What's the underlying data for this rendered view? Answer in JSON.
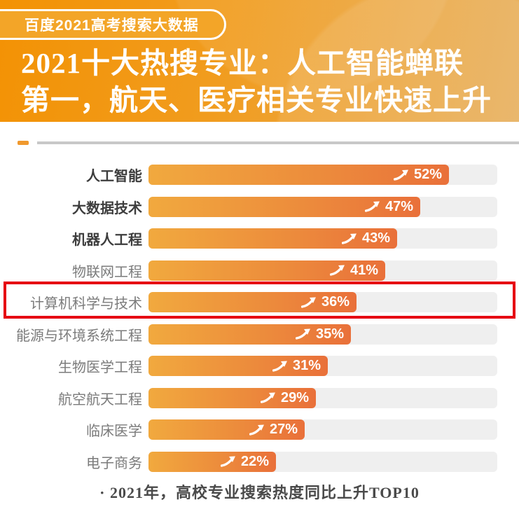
{
  "badge": {
    "label": "百度2021高考搜索大数据"
  },
  "title": {
    "line1": "2021十大热搜专业：人工智能蝉联",
    "line2": "第一，航天、医疗相关专业快速上升"
  },
  "chart_data": {
    "type": "bar",
    "orientation": "horizontal",
    "title": "2021十大热搜专业：人工智能蝉联第一，航天、医疗相关专业快速上升",
    "categories": [
      "人工智能",
      "大数据技术",
      "机器人工程",
      "物联网工程",
      "计算机科学与技术",
      "能源与环境系统工程",
      "生物医学工程",
      "航空航天工程",
      "临床医学",
      "电子商务"
    ],
    "values": [
      52,
      47,
      43,
      41,
      36,
      35,
      31,
      29,
      27,
      22
    ],
    "unit": "%",
    "value_prefix_icon": "trend-up-arrow",
    "bold_top_n": 3,
    "highlight_category": "计算机科学与技术",
    "highlight_value": 36,
    "xlim": [
      0,
      60
    ],
    "grid": false,
    "legend": false,
    "colors": {
      "bar_gradient_start": "#f1a93e",
      "bar_gradient_end": "#e9703a",
      "track": "#efefef",
      "label_top3": "#3d3d3d",
      "label_rest": "#7b7b7b",
      "highlight_box": "#e60012",
      "value_text": "#ffffff"
    }
  },
  "footer": {
    "caption": "· 2021年，高校专业搜索热度同比上升TOP10"
  },
  "theme": {
    "header_gradient_start": "#f39204",
    "header_gradient_end": "#e7af5c",
    "badge_background": "#f3a528",
    "divider_dash": "#f0992e",
    "divider_line": "#c8c8c8"
  }
}
